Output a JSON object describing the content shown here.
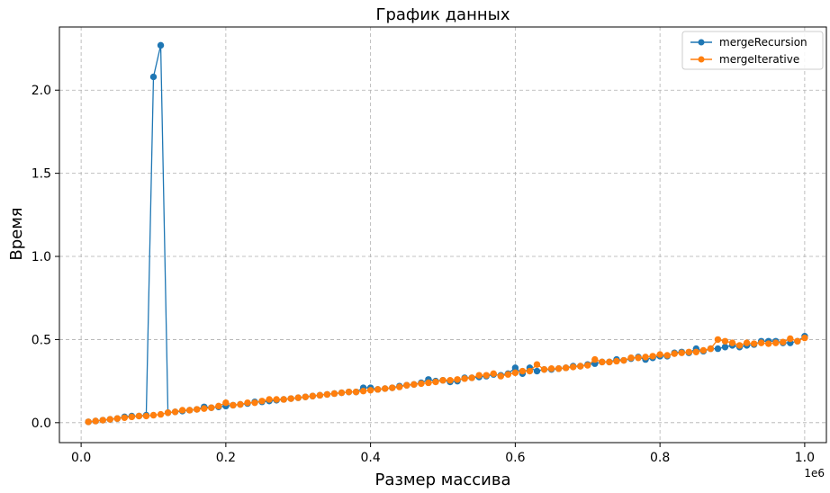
{
  "chart_data": {
    "type": "line",
    "title": "График данных",
    "xlabel": "Размер массива",
    "ylabel": "Время",
    "x_offset_label": "1e6",
    "xlim": [
      -0.03,
      1.03
    ],
    "ylim": [
      -0.12,
      2.38
    ],
    "xticks": [
      0.0,
      0.2,
      0.4,
      0.6,
      0.8,
      1.0
    ],
    "xtick_labels": [
      "0.0",
      "0.2",
      "0.4",
      "0.6",
      "0.8",
      "1.0"
    ],
    "yticks": [
      0.0,
      0.5,
      1.0,
      1.5,
      2.0
    ],
    "ytick_labels": [
      "0.0",
      "0.5",
      "1.0",
      "1.5",
      "2.0"
    ],
    "grid": true,
    "legend_position": "top-right",
    "x": [
      0.01,
      0.02,
      0.03,
      0.04,
      0.05,
      0.06,
      0.07,
      0.08,
      0.09,
      0.1,
      0.11,
      0.12,
      0.13,
      0.14,
      0.15,
      0.16,
      0.17,
      0.18,
      0.19,
      0.2,
      0.21,
      0.22,
      0.23,
      0.24,
      0.25,
      0.26,
      0.27,
      0.28,
      0.29,
      0.3,
      0.31,
      0.32,
      0.33,
      0.34,
      0.35,
      0.36,
      0.37,
      0.38,
      0.39,
      0.4,
      0.41,
      0.42,
      0.43,
      0.44,
      0.45,
      0.46,
      0.47,
      0.48,
      0.49,
      0.5,
      0.51,
      0.52,
      0.53,
      0.54,
      0.55,
      0.56,
      0.57,
      0.58,
      0.59,
      0.6,
      0.61,
      0.62,
      0.63,
      0.64,
      0.65,
      0.66,
      0.67,
      0.68,
      0.69,
      0.7,
      0.71,
      0.72,
      0.73,
      0.74,
      0.75,
      0.76,
      0.77,
      0.78,
      0.79,
      0.8,
      0.81,
      0.82,
      0.83,
      0.84,
      0.85,
      0.86,
      0.87,
      0.88,
      0.89,
      0.9,
      0.91,
      0.92,
      0.93,
      0.94,
      0.95,
      0.96,
      0.97,
      0.98,
      0.99,
      1.0
    ],
    "series": [
      {
        "name": "mergeRecursion",
        "color": "#1f77b4",
        "values": [
          0.005,
          0.01,
          0.015,
          0.02,
          0.025,
          0.035,
          0.04,
          0.04,
          0.045,
          2.08,
          2.27,
          0.06,
          0.065,
          0.07,
          0.075,
          0.08,
          0.095,
          0.09,
          0.095,
          0.1,
          0.105,
          0.11,
          0.115,
          0.125,
          0.125,
          0.13,
          0.135,
          0.14,
          0.145,
          0.15,
          0.155,
          0.16,
          0.165,
          0.17,
          0.175,
          0.18,
          0.185,
          0.185,
          0.21,
          0.21,
          0.2,
          0.205,
          0.21,
          0.22,
          0.225,
          0.23,
          0.24,
          0.26,
          0.25,
          0.255,
          0.245,
          0.25,
          0.27,
          0.27,
          0.275,
          0.28,
          0.29,
          0.285,
          0.295,
          0.33,
          0.295,
          0.33,
          0.31,
          0.32,
          0.32,
          0.325,
          0.33,
          0.34,
          0.34,
          0.35,
          0.355,
          0.365,
          0.365,
          0.38,
          0.375,
          0.385,
          0.395,
          0.38,
          0.39,
          0.4,
          0.4,
          0.42,
          0.425,
          0.42,
          0.445,
          0.43,
          0.445,
          0.445,
          0.455,
          0.465,
          0.455,
          0.465,
          0.47,
          0.49,
          0.49,
          0.49,
          0.48,
          0.48,
          0.49,
          0.52
        ]
      },
      {
        "name": "mergeIterative",
        "color": "#ff7f0e",
        "values": [
          0.005,
          0.01,
          0.015,
          0.02,
          0.025,
          0.03,
          0.035,
          0.04,
          0.04,
          0.045,
          0.05,
          0.06,
          0.065,
          0.075,
          0.075,
          0.08,
          0.085,
          0.09,
          0.1,
          0.12,
          0.105,
          0.11,
          0.12,
          0.12,
          0.13,
          0.14,
          0.14,
          0.14,
          0.145,
          0.15,
          0.155,
          0.16,
          0.165,
          0.17,
          0.175,
          0.18,
          0.185,
          0.185,
          0.19,
          0.195,
          0.2,
          0.205,
          0.21,
          0.215,
          0.225,
          0.23,
          0.235,
          0.24,
          0.245,
          0.255,
          0.255,
          0.26,
          0.265,
          0.27,
          0.285,
          0.285,
          0.295,
          0.28,
          0.29,
          0.3,
          0.31,
          0.31,
          0.35,
          0.32,
          0.325,
          0.325,
          0.33,
          0.335,
          0.34,
          0.345,
          0.38,
          0.365,
          0.365,
          0.37,
          0.375,
          0.39,
          0.39,
          0.395,
          0.4,
          0.41,
          0.405,
          0.415,
          0.42,
          0.425,
          0.425,
          0.435,
          0.445,
          0.5,
          0.49,
          0.48,
          0.465,
          0.48,
          0.475,
          0.48,
          0.475,
          0.48,
          0.485,
          0.505,
          0.49,
          0.51
        ]
      }
    ]
  }
}
